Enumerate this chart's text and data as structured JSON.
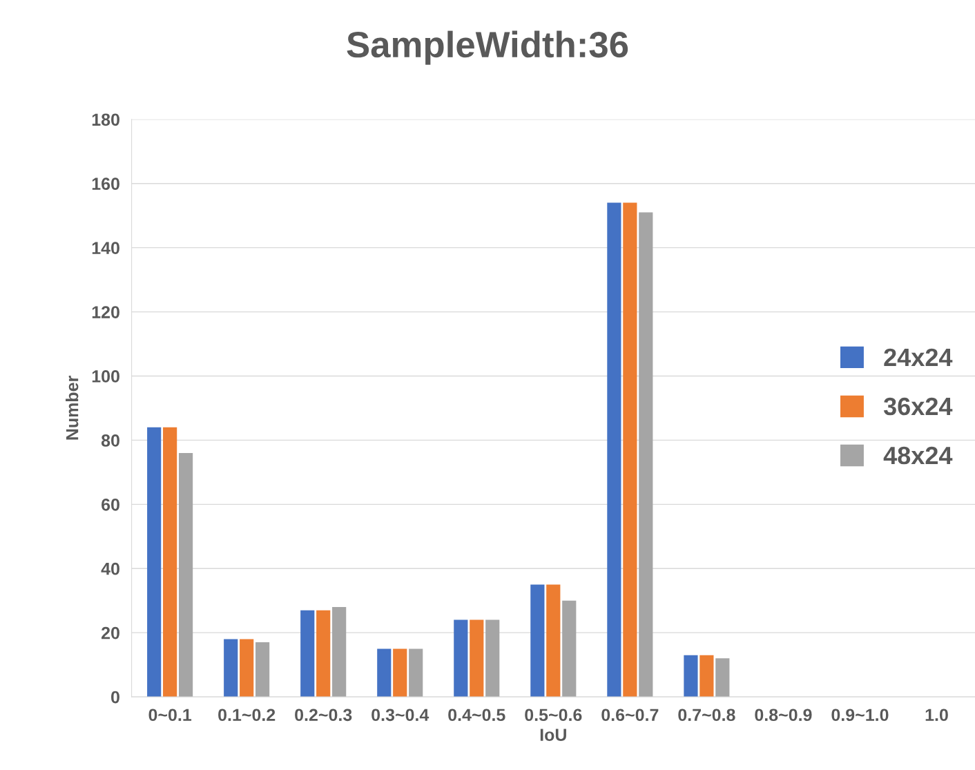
{
  "chart_data": {
    "type": "bar",
    "title": "SampleWidth:36",
    "xlabel": "IoU",
    "ylabel": "Number",
    "categories": [
      "0~0.1",
      "0.1~0.2",
      "0.2~0.3",
      "0.3~0.4",
      "0.4~0.5",
      "0.5~0.6",
      "0.6~0.7",
      "0.7~0.8",
      "0.8~0.9",
      "0.9~1.0",
      "1.0"
    ],
    "series": [
      {
        "name": "24x24",
        "color": "#4472c4",
        "values": [
          84,
          18,
          27,
          15,
          24,
          35,
          154,
          13,
          0,
          0,
          0
        ]
      },
      {
        "name": "36x24",
        "color": "#ed7d31",
        "values": [
          84,
          18,
          27,
          15,
          24,
          35,
          154,
          13,
          0,
          0,
          0
        ]
      },
      {
        "name": "48x24",
        "color": "#a5a5a5",
        "values": [
          76,
          17,
          28,
          15,
          24,
          30,
          151,
          12,
          0,
          0,
          0
        ]
      }
    ],
    "ylim": [
      0,
      180
    ],
    "yticks": [
      0,
      20,
      40,
      60,
      80,
      100,
      120,
      140,
      160,
      180
    ],
    "grid": "y",
    "legend": "right"
  }
}
